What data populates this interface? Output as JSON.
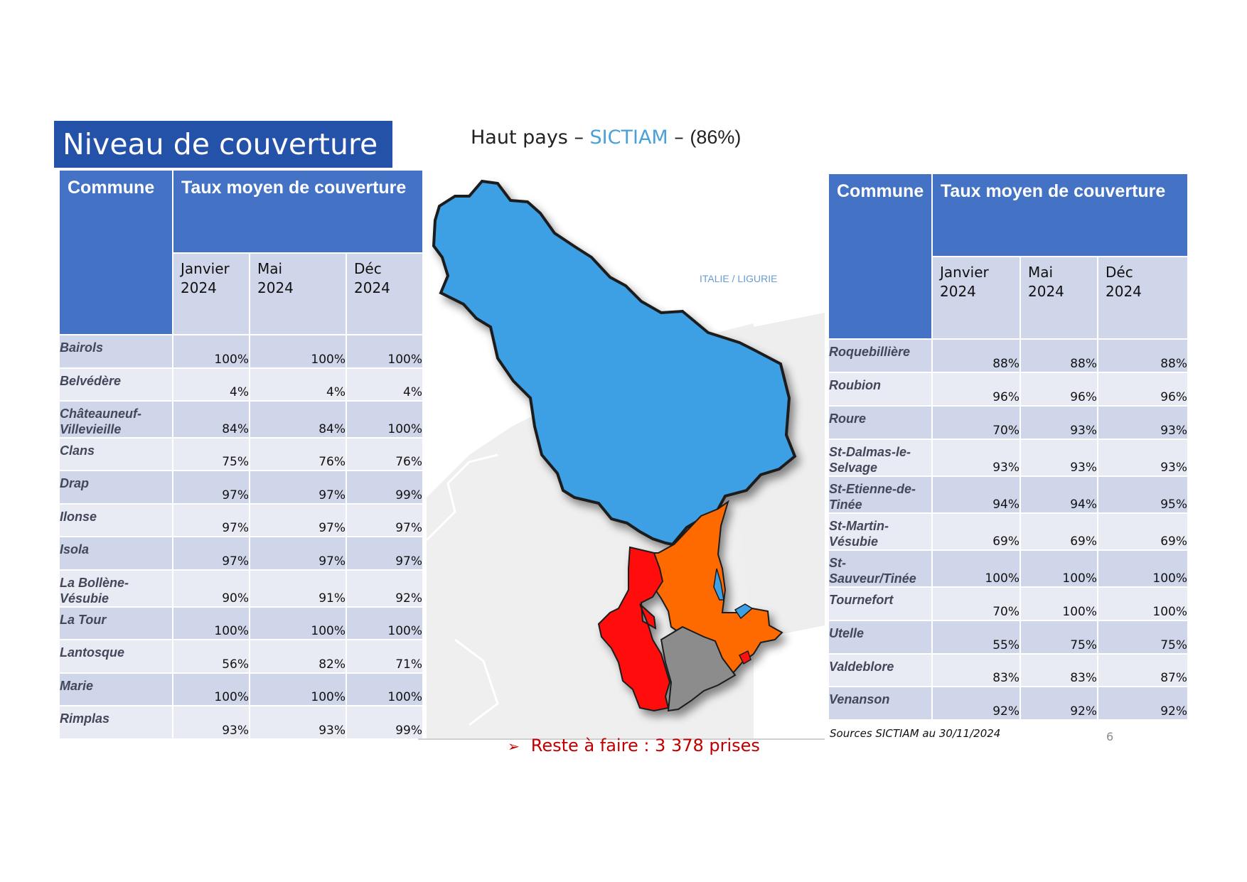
{
  "section_title": "Niveau de couverture",
  "map_title": {
    "prefix": "Haut pays – ",
    "highlight": "SICTIAM",
    "suffix": " – ",
    "rate": "(86%)"
  },
  "map_label": "ITALIE / LIGURIE",
  "todo": {
    "arrow": "➢",
    "text": "Reste à faire : 3 378 prises"
  },
  "source": "Sources SICTIAM au 30/11/2024",
  "page_number": "6",
  "colors": {
    "banner": "#2352a8",
    "header": "#4472c4",
    "row_a": "#d0d6e9",
    "row_b": "#e9ebf4",
    "map_blue": "#3d9fe4",
    "map_orange": "#ff6a00",
    "map_red": "#ff0000",
    "map_grey": "#8c8c8c",
    "todo": "#c00000"
  },
  "table_left": {
    "header_commune": "Commune",
    "header_taux": "Taux moyen de couverture",
    "periods": [
      "Janvier 2024",
      "Mai 2024",
      "Déc 2024"
    ],
    "rows": [
      {
        "commune": "Bairols",
        "janv": "100%",
        "mai": "100%",
        "dec": "100%"
      },
      {
        "commune": "Belvédère",
        "janv": "4%",
        "mai": "4%",
        "dec": "4%"
      },
      {
        "commune": "Châteauneuf-Villevieille",
        "janv": "84%",
        "mai": "84%",
        "dec": "100%"
      },
      {
        "commune": "Clans",
        "janv": "75%",
        "mai": "76%",
        "dec": "76%"
      },
      {
        "commune": "Drap",
        "janv": "97%",
        "mai": "97%",
        "dec": "99%"
      },
      {
        "commune": "Ilonse",
        "janv": "97%",
        "mai": "97%",
        "dec": "97%"
      },
      {
        "commune": "Isola",
        "janv": "97%",
        "mai": "97%",
        "dec": "97%"
      },
      {
        "commune": "La Bollène-Vésubie",
        "janv": "90%",
        "mai": "91%",
        "dec": "92%"
      },
      {
        "commune": "La Tour",
        "janv": "100%",
        "mai": "100%",
        "dec": "100%"
      },
      {
        "commune": "Lantosque",
        "janv": "56%",
        "mai": "82%",
        "dec": "71%"
      },
      {
        "commune": "Marie",
        "janv": "100%",
        "mai": "100%",
        "dec": "100%"
      },
      {
        "commune": "Rimplas",
        "janv": "93%",
        "mai": "93%",
        "dec": "99%"
      }
    ]
  },
  "table_right": {
    "header_commune": "Commune",
    "header_taux": "Taux moyen de couverture",
    "periods": [
      "Janvier 2024",
      "Mai 2024",
      "Déc 2024"
    ],
    "rows": [
      {
        "commune": "Roquebillière",
        "janv": "88%",
        "mai": "88%",
        "dec": "88%"
      },
      {
        "commune": "Roubion",
        "janv": "96%",
        "mai": "96%",
        "dec": "96%"
      },
      {
        "commune": "Roure",
        "janv": "70%",
        "mai": "93%",
        "dec": "93%"
      },
      {
        "commune": "St-Dalmas-le-Selvage",
        "janv": "93%",
        "mai": "93%",
        "dec": "93%"
      },
      {
        "commune": "St-Etienne-de-Tinée",
        "janv": "94%",
        "mai": "94%",
        "dec": "95%"
      },
      {
        "commune": "St-Martin-Vésubie",
        "janv": "69%",
        "mai": "69%",
        "dec": "69%"
      },
      {
        "commune": "St-Sauveur/Tinée",
        "janv": "100%",
        "mai": "100%",
        "dec": "100%"
      },
      {
        "commune": "Tournefort",
        "janv": "70%",
        "mai": "100%",
        "dec": "100%"
      },
      {
        "commune": "Utelle",
        "janv": "55%",
        "mai": "75%",
        "dec": "75%"
      },
      {
        "commune": "Valdeblore",
        "janv": "83%",
        "mai": "83%",
        "dec": "87%"
      },
      {
        "commune": "Venanson",
        "janv": "92%",
        "mai": "92%",
        "dec": "92%"
      }
    ]
  }
}
